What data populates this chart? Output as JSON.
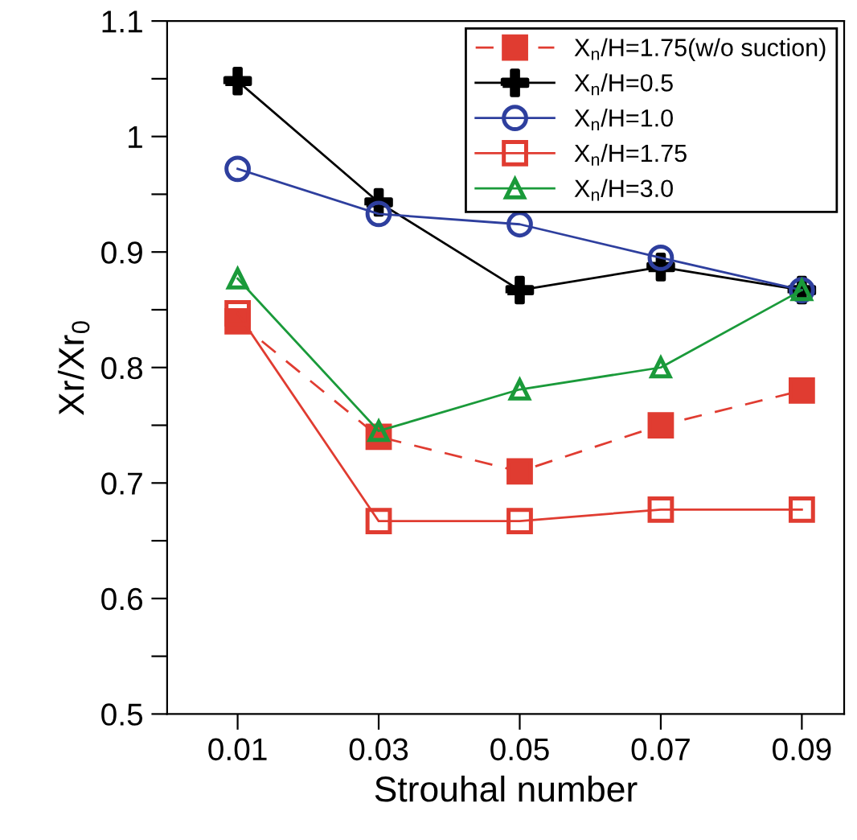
{
  "chart_data": {
    "type": "line",
    "xlabel": "Strouhal number",
    "ylabel": "Xr/Xr$_{0}$",
    "x": [
      0.01,
      0.03,
      0.05,
      0.07,
      0.09
    ],
    "xlim": [
      0,
      0.096
    ],
    "xticks": [
      0.01,
      0.03,
      0.05,
      0.07,
      0.09
    ],
    "ylim": [
      0.5,
      1.1
    ],
    "yticks": [
      {
        "value": 0.5,
        "label": "0.5"
      },
      {
        "value": 0.55,
        "label": null
      },
      {
        "value": 0.6,
        "label": "0.6"
      },
      {
        "value": 0.65,
        "label": null
      },
      {
        "value": 0.7,
        "label": "0.7"
      },
      {
        "value": 0.75,
        "label": null
      },
      {
        "value": 0.8,
        "label": "0.8"
      },
      {
        "value": 0.85,
        "label": null
      },
      {
        "value": 0.9,
        "label": "0.9"
      },
      {
        "value": 0.95,
        "label": null
      },
      {
        "value": 1,
        "label": "1"
      },
      {
        "value": 1.05,
        "label": null
      },
      {
        "value": 1.1,
        "label": "1.1"
      }
    ],
    "grid": false,
    "legend": "top right",
    "series": [
      {
        "name": "X$_{n}$/H=1.75(w/o suction)",
        "color": "#e03c31",
        "marker": "square",
        "line_style": "dashed",
        "values": [
          0.84,
          0.74,
          0.71,
          0.75,
          0.78
        ]
      },
      {
        "name": "X$_{n}$/H=0.5",
        "color": "#000000",
        "marker": "cross",
        "line_style": "solid",
        "values": [
          1.048,
          0.943,
          0.867,
          0.887,
          0.867
        ]
      },
      {
        "name": "X$_{n}$/H=1.0",
        "color": "#2e3f9e",
        "marker": "circle",
        "line_style": "solid",
        "values": [
          0.972,
          0.933,
          0.924,
          0.895,
          0.867
        ]
      },
      {
        "name": "X$_{n}$/H=1.75",
        "color": "#e03c31",
        "marker": "square",
        "line_style": "solid",
        "values": [
          0.847,
          0.667,
          0.667,
          0.677,
          0.677
        ]
      },
      {
        "name": "X$_{n}$/H=3.0",
        "color": "#1a9a3a",
        "marker": "triangle",
        "line_style": "solid",
        "values": [
          0.877,
          0.745,
          0.781,
          0.8,
          0.867
        ]
      }
    ]
  }
}
